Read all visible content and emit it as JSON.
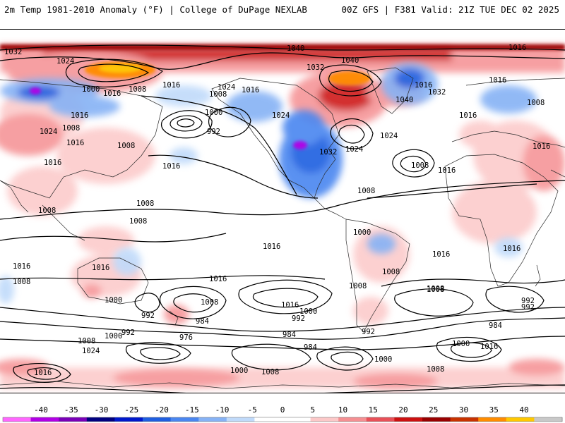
{
  "header": {
    "title_left": "2m Temp 1981-2010 Anomaly (°F) | College of DuPage NEXLAB",
    "title_right": "00Z GFS | F381 Valid: 21Z TUE DEC 02 2025"
  },
  "legend": {
    "ticks": [
      "-40",
      "-35",
      "-30",
      "-25",
      "-20",
      "-15",
      "-10",
      "-5",
      "0",
      "5",
      "10",
      "15",
      "20",
      "25",
      "30",
      "35",
      "40"
    ],
    "colors": [
      "#ff66ff",
      "#b200e6",
      "#7a00b8",
      "#000080",
      "#0018cc",
      "#1f5ee0",
      "#4a86f0",
      "#86b2f5",
      "#c0dafa",
      "#ffffff",
      "#ffffff",
      "#fcc8c8",
      "#f58f92",
      "#e85058",
      "#cc1010",
      "#990000",
      "#c83200",
      "#ff8c00",
      "#ffc800",
      "#c8c8c8"
    ]
  },
  "isobar_labels": [
    "1032",
    "1024",
    "1040",
    "1040",
    "1032",
    "1016",
    "1000",
    "1016",
    "1008",
    "1008",
    "1016",
    "1024",
    "1016",
    "1016",
    "1040",
    "1032",
    "1016",
    "1008",
    "1016",
    "1008",
    "1024",
    "1016",
    "1000",
    "992",
    "1024",
    "1016",
    "1032",
    "1024",
    "1024",
    "1016",
    "1008",
    "1016",
    "1016",
    "1008",
    "1016",
    "1008",
    "1008",
    "1008",
    "1008",
    "1000",
    "1016",
    "1016",
    "1016",
    "1016",
    "1008",
    "1016",
    "1008",
    "1016",
    "1008",
    "1008",
    "1000",
    "1008",
    "992",
    "984",
    "992",
    "984",
    "976",
    "992",
    "1000",
    "1008",
    "1024",
    "1016",
    "984",
    "992",
    "1000",
    "1000",
    "1008",
    "1000",
    "1008",
    "1016",
    "992",
    "984",
    "1008",
    "992",
    "1016",
    "1000"
  ]
}
